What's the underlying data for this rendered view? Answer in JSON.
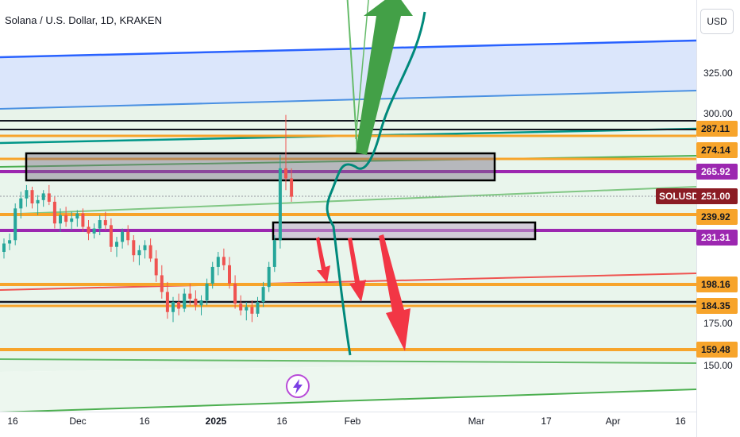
{
  "header": {
    "title": "Solana / U.S. Dollar, 1D, KRAKEN",
    "currency": "USD"
  },
  "y_axis": {
    "ticks": [
      "325.00",
      "300.00",
      "175.00",
      "150.00"
    ]
  },
  "x_axis": {
    "ticks": [
      "16",
      "Dec",
      "16",
      "2025",
      "16",
      "Feb",
      "Mar",
      "17",
      "Apr",
      "16"
    ]
  },
  "price_labels": [
    {
      "value": "287.11",
      "kind": "orange"
    },
    {
      "value": "274.14",
      "kind": "orange"
    },
    {
      "value": "265.92",
      "kind": "purple"
    },
    {
      "value": "251.00",
      "kind": "dark"
    },
    {
      "value": "239.92",
      "kind": "orange"
    },
    {
      "value": "231.31",
      "kind": "purple"
    },
    {
      "value": "198.16",
      "kind": "orange"
    },
    {
      "value": "184.35",
      "kind": "orange"
    },
    {
      "value": "159.48",
      "kind": "orange"
    }
  ],
  "symbol": "SOLUSD",
  "colors": {
    "up": "#26a69a",
    "down": "#ef5350",
    "orange": "#f7a42b",
    "purple": "#9c27b0",
    "blue": "#2962ff",
    "green_arrow": "#4caf50",
    "red_arrow": "#f23645"
  },
  "icons": {
    "logo": "lightning-badge-icon"
  },
  "chart_data": {
    "type": "candlestick",
    "title": "Solana / U.S. Dollar, 1D, KRAKEN",
    "ylim": [
      145,
      345
    ],
    "candles_ohlc": [
      [
        218,
        226,
        214,
        223
      ],
      [
        223,
        229,
        219,
        225
      ],
      [
        225,
        247,
        222,
        244
      ],
      [
        244,
        254,
        238,
        250
      ],
      [
        250,
        258,
        245,
        255
      ],
      [
        255,
        257,
        244,
        247
      ],
      [
        247,
        252,
        240,
        249
      ],
      [
        249,
        255,
        245,
        253
      ],
      [
        253,
        258,
        246,
        248
      ],
      [
        248,
        251,
        232,
        235
      ],
      [
        235,
        244,
        230,
        240
      ],
      [
        240,
        245,
        233,
        236
      ],
      [
        236,
        242,
        231,
        238
      ],
      [
        238,
        243,
        233,
        241
      ],
      [
        241,
        244,
        230,
        233
      ],
      [
        233,
        237,
        225,
        229
      ],
      [
        229,
        235,
        226,
        232
      ],
      [
        232,
        240,
        228,
        237
      ],
      [
        237,
        242,
        231,
        234
      ],
      [
        234,
        238,
        218,
        221
      ],
      [
        221,
        227,
        215,
        224
      ],
      [
        224,
        232,
        220,
        230
      ],
      [
        230,
        234,
        222,
        225
      ],
      [
        225,
        228,
        212,
        216
      ],
      [
        216,
        222,
        210,
        219
      ],
      [
        219,
        225,
        214,
        222
      ],
      [
        222,
        226,
        212,
        214
      ],
      [
        214,
        219,
        200,
        204
      ],
      [
        204,
        210,
        190,
        194
      ],
      [
        194,
        200,
        178,
        182
      ],
      [
        182,
        191,
        176,
        188
      ],
      [
        188,
        193,
        180,
        184
      ],
      [
        184,
        196,
        182,
        193
      ],
      [
        193,
        199,
        186,
        190
      ],
      [
        190,
        195,
        183,
        186
      ],
      [
        186,
        192,
        180,
        189
      ],
      [
        189,
        202,
        186,
        199
      ],
      [
        199,
        212,
        196,
        209
      ],
      [
        209,
        218,
        204,
        215
      ],
      [
        215,
        220,
        207,
        210
      ],
      [
        210,
        215,
        196,
        199
      ],
      [
        199,
        204,
        184,
        187
      ],
      [
        187,
        192,
        180,
        183
      ],
      [
        183,
        188,
        177,
        185
      ],
      [
        185,
        189,
        176,
        181
      ],
      [
        181,
        191,
        179,
        188
      ],
      [
        188,
        200,
        185,
        197
      ],
      [
        197,
        212,
        194,
        209
      ],
      [
        209,
        228,
        206,
        225
      ],
      [
        225,
        276,
        220,
        268
      ],
      [
        268,
        300,
        255,
        262
      ],
      [
        262,
        268,
        248,
        251
      ]
    ],
    "levels": [
      287.11,
      274.14,
      265.92,
      251.0,
      239.92,
      231.31,
      198.16,
      184.35,
      159.48
    ]
  }
}
